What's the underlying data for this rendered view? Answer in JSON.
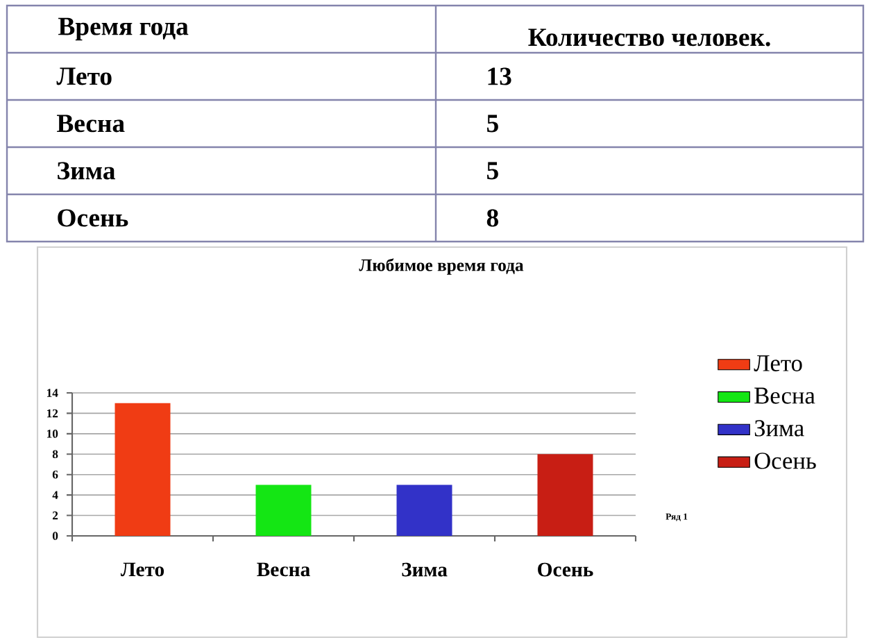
{
  "chart_data": [
    {
      "type": "heatmap",
      "ylabel": "Время года",
      "categories": [
        "Количество человек."
      ],
      "y_categories": [
        "Лето",
        "Весна",
        "Зима",
        "Осень"
      ],
      "cells": [
        [
          13
        ],
        [
          5
        ],
        [
          5
        ],
        [
          8
        ]
      ],
      "data_labels": true
    },
    {
      "type": "bar",
      "title": "Любимое время года",
      "categories": [
        "Лето",
        "Весна",
        "Зима",
        "Осень"
      ],
      "series": [
        {
          "name": "Лето",
          "color": "#f03c14",
          "values": [
            13,
            null,
            null,
            null
          ]
        },
        {
          "name": "Весна",
          "color": "#14e614",
          "values": [
            null,
            5,
            null,
            null
          ]
        },
        {
          "name": "Зима",
          "color": "#3232c8",
          "values": [
            null,
            null,
            5,
            null
          ]
        },
        {
          "name": "Осень",
          "color": "#c81e14",
          "values": [
            null,
            null,
            null,
            8
          ]
        }
      ],
      "ylim": [
        0,
        14
      ],
      "yticks": [
        0,
        2,
        4,
        6,
        8,
        10,
        12,
        14
      ],
      "grid": "y",
      "legend": "right",
      "annotations": [
        "Ряд 1"
      ]
    }
  ]
}
